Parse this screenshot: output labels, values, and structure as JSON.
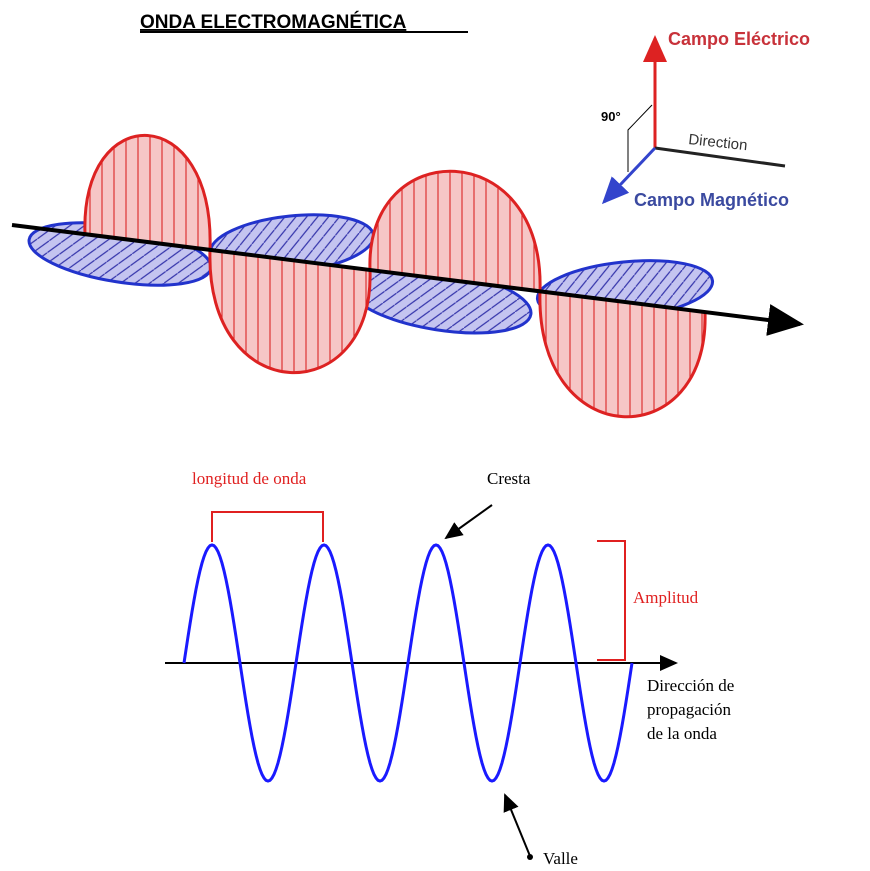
{
  "title": "ONDA ELECTROMAGNÉTICA",
  "axes": {
    "electric": "Campo Eléctrico",
    "angle": "90°",
    "direction": "Direction",
    "magnetic": "Campo Magnético"
  },
  "wave": {
    "wavelength": "longitud de onda",
    "crest": "Cresta",
    "amplitude": "Amplitud",
    "propagation": [
      "Dirección de",
      "propagación",
      "de la onda"
    ],
    "trough": "Valle"
  }
}
